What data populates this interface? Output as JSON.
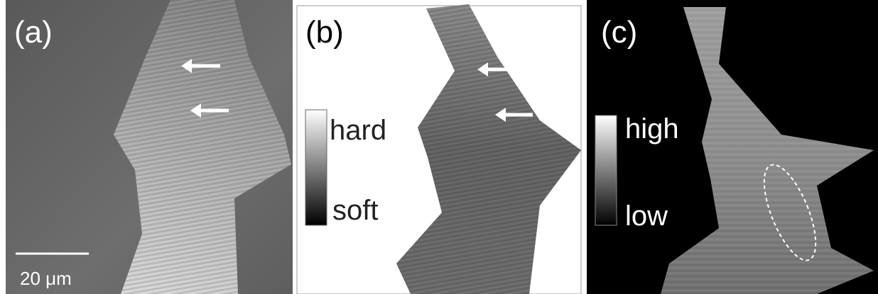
{
  "panels": [
    {
      "label": "(a)",
      "scale_bar": "20 μm"
    },
    {
      "label": "(b)",
      "colorbar": {
        "top": "hard",
        "bottom": "soft"
      }
    },
    {
      "label": "(c)",
      "colorbar": {
        "top": "high",
        "bottom": "low"
      }
    }
  ]
}
